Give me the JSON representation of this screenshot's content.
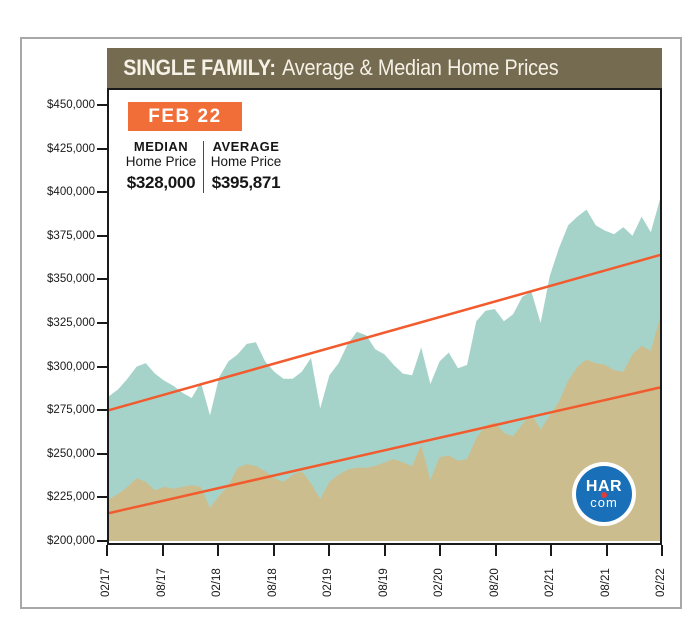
{
  "header": {
    "title_bold": "SINGLE FAMILY:",
    "title_rest": "Average & Median Home Prices"
  },
  "stats": {
    "period": "FEB 22",
    "median_label": "MEDIAN",
    "median_sublabel": "Home Price",
    "median_value": "$328,000",
    "average_label": "AVERAGE",
    "average_sublabel": "Home Price",
    "average_value": "$395,871"
  },
  "logo": {
    "line1": "HAR",
    "line2": "com"
  },
  "colors": {
    "header_bg": "#756b50",
    "header_text": "#f5f1e6",
    "badge_orange": "#f26e39",
    "trend_orange": "#f15b2d",
    "average_fill": "#a6d3c9",
    "median_fill": "#cbbd8e",
    "har_blue": "#1a70b8",
    "har_red": "#e13b3b",
    "axis_text": "#1a1a1a"
  },
  "chart_data": {
    "type": "area",
    "title": "SINGLE FAMILY: Average & Median Home Prices",
    "x_start": "02/17",
    "x_end": "02/22",
    "interval": "monthly",
    "x_tick_labels": [
      "02/17",
      "08/17",
      "02/18",
      "08/18",
      "02/19",
      "08/19",
      "02/20",
      "08/20",
      "02/21",
      "08/21",
      "02/22"
    ],
    "y_tick_labels": [
      "$450,000",
      "$425,000",
      "$400,000",
      "$375,000",
      "$350,000",
      "$325,000",
      "$300,000",
      "$275,000",
      "$250,000",
      "$225,000",
      "$200,000"
    ],
    "ylim": [
      200000,
      450000
    ],
    "grid": false,
    "legend_position": "none",
    "series": [
      {
        "name": "Average Home Price",
        "color": "#a6d3c9",
        "values": [
          283000,
          287000,
          293000,
          300000,
          302000,
          296000,
          292000,
          289000,
          285000,
          282000,
          291000,
          272000,
          294000,
          303000,
          307000,
          313000,
          314000,
          303000,
          297000,
          293000,
          293000,
          297000,
          305000,
          276000,
          295000,
          302000,
          313000,
          320000,
          318000,
          310000,
          307000,
          301000,
          296000,
          295000,
          311000,
          290000,
          303000,
          308000,
          299000,
          301000,
          326000,
          332000,
          333000,
          326000,
          330000,
          340000,
          343000,
          325000,
          352000,
          368000,
          381000,
          386000,
          390000,
          381000,
          378000,
          376000,
          380000,
          375000,
          386000,
          377000,
          395871
        ]
      },
      {
        "name": "Median Home Price",
        "color": "#cbbd8e",
        "values": [
          224000,
          227000,
          231000,
          236000,
          234000,
          229000,
          231000,
          230000,
          231000,
          232000,
          231000,
          219000,
          226000,
          232000,
          242000,
          244000,
          243000,
          240000,
          236000,
          234000,
          238000,
          240000,
          233000,
          224000,
          234000,
          238000,
          241000,
          242000,
          242000,
          243000,
          245000,
          247000,
          245000,
          243000,
          255000,
          235000,
          248000,
          249000,
          246000,
          247000,
          259000,
          266000,
          268000,
          262000,
          260000,
          267000,
          273000,
          264000,
          272000,
          280000,
          292000,
          300000,
          304000,
          302000,
          301000,
          298000,
          297000,
          307000,
          312000,
          309000,
          328000
        ]
      }
    ],
    "trend_lines": [
      {
        "name": "Average trend",
        "start": 275000,
        "end": 364000,
        "color": "#f15b2d"
      },
      {
        "name": "Median trend",
        "start": 216000,
        "end": 288000,
        "color": "#f15b2d"
      }
    ]
  }
}
